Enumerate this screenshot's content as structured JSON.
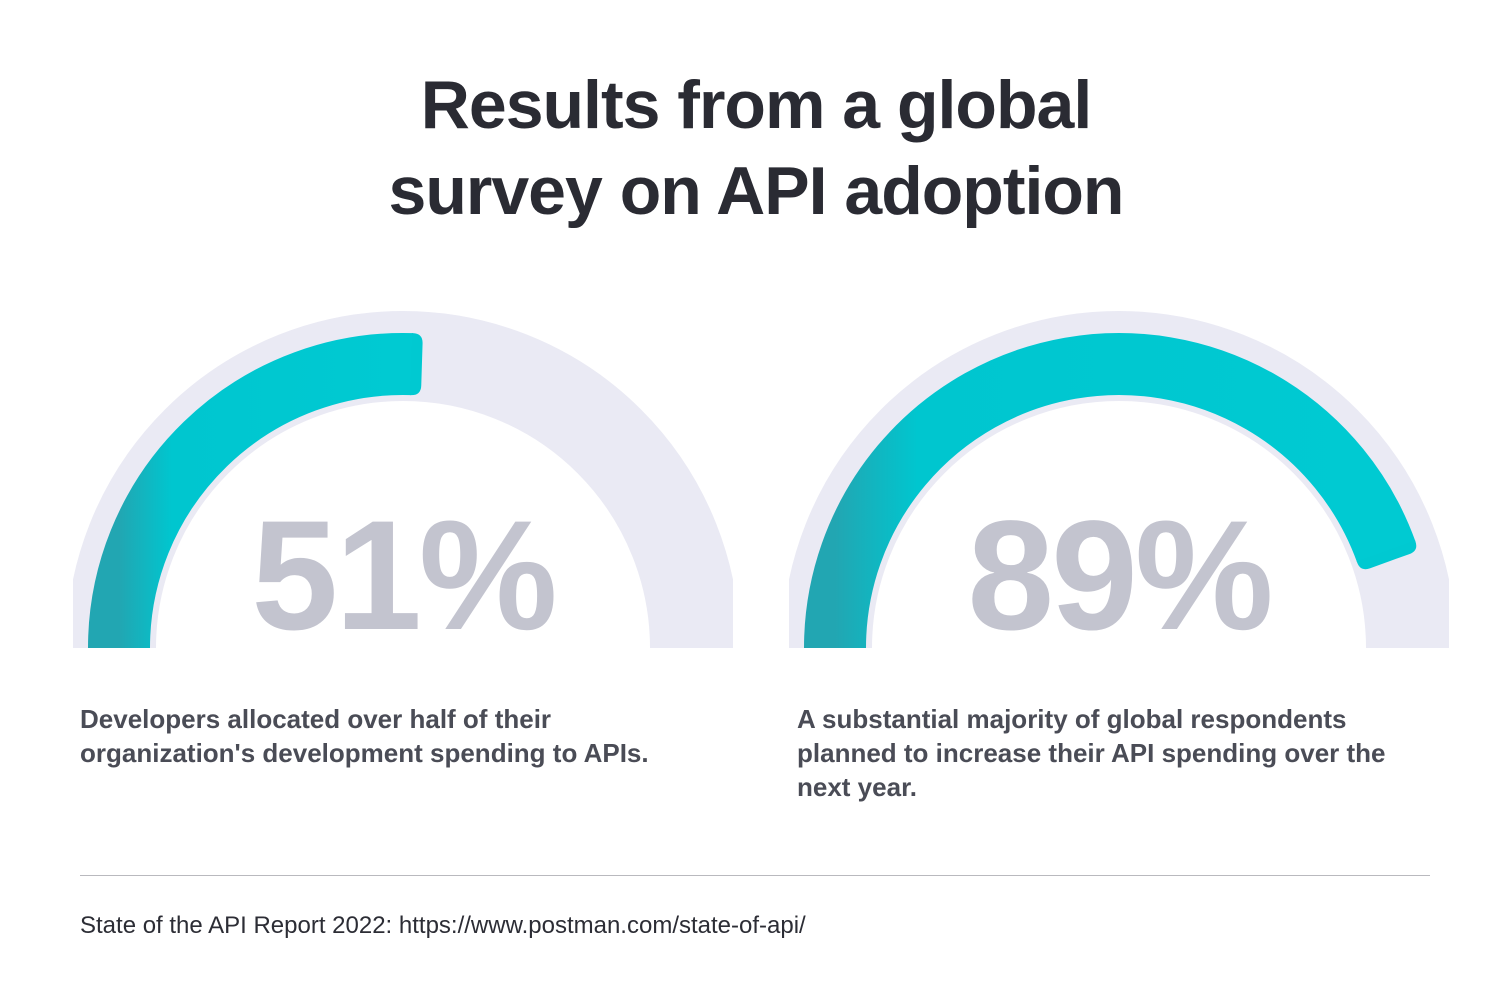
{
  "title": {
    "line1": "Results from a global",
    "line2": "survey on API adoption"
  },
  "chart_data": [
    {
      "type": "gauge",
      "value": 51,
      "max": 100,
      "label": "51%",
      "caption": "Developers allocated over half of their organization's development spending to APIs."
    },
    {
      "type": "gauge",
      "value": 89,
      "max": 100,
      "label": "89%",
      "caption": "A substantial majority of global respondents planned to increase their API spending over the next year."
    }
  ],
  "colors": {
    "track": "#eaeaf4",
    "fill": "#00c9d1",
    "fill_dark": "#1aa9b4",
    "percent": "#c3c4cf"
  },
  "source": "State of the API Report 2022: https://www.postman.com/state-of-api/"
}
